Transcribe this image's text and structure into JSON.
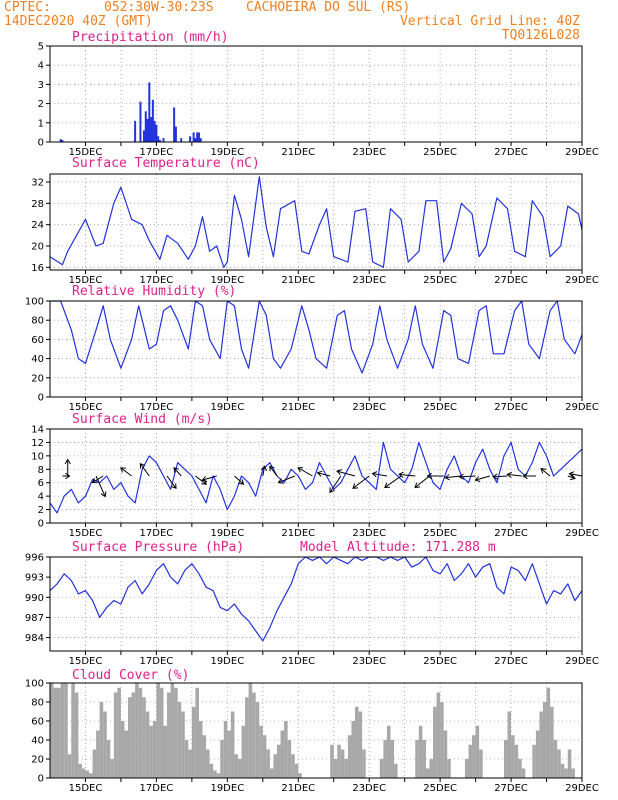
{
  "header": {
    "source": "CPTEC:",
    "coords": "052:30W-30:23S",
    "station": "CACHOEIRA DO SUL (RS)",
    "date": "14DEC2020 40Z (GMT)",
    "grid_note": "Vertical Grid Line: 40Z",
    "run_id": "TQ0126L028"
  },
  "colors": {
    "line": "#2233dd",
    "bar": "#2233dd",
    "cloud": "#a8a8a8",
    "title": "#e0208a",
    "header": "#f08020"
  },
  "x_labels": [
    "15DEC",
    "17DEC",
    "19DEC",
    "21DEC",
    "23DEC",
    "25DEC",
    "27DEC",
    "29DEC"
  ],
  "chart_data": [
    {
      "id": "precip",
      "type": "bar",
      "title": "Precipitation (mm/h)",
      "ylim": [
        0,
        5
      ],
      "yticks": [
        0,
        1,
        2,
        3,
        4,
        5
      ],
      "x": [
        14.3,
        14.35,
        16.4,
        16.55,
        16.65,
        16.7,
        16.75,
        16.8,
        16.85,
        16.9,
        16.95,
        17.0,
        17.05,
        17.1,
        17.2,
        17.5,
        17.55,
        17.7,
        17.95,
        18.05,
        18.1,
        18.15,
        18.2,
        18.25
      ],
      "values": [
        0.15,
        0.1,
        1.1,
        2.1,
        0.6,
        1.6,
        1.2,
        3.1,
        1.3,
        2.2,
        1.1,
        0.9,
        0.3,
        0.1,
        0.2,
        1.8,
        0.8,
        0.2,
        0.3,
        0.5,
        0.2,
        0.5,
        0.5,
        0.2
      ]
    },
    {
      "id": "temp",
      "type": "line",
      "title": "Surface Temperature (nC)",
      "ylim": [
        15.5,
        33.5
      ],
      "yticks": [
        16,
        20,
        24,
        28,
        32
      ],
      "x": [
        14.0,
        14.35,
        14.5,
        15.0,
        15.3,
        15.5,
        15.8,
        16.0,
        16.3,
        16.6,
        16.8,
        17.1,
        17.3,
        17.6,
        17.9,
        18.1,
        18.3,
        18.5,
        18.7,
        18.9,
        19.0,
        19.2,
        19.4,
        19.6,
        19.9,
        20.1,
        20.3,
        20.5,
        20.9,
        21.1,
        21.3,
        21.6,
        21.8,
        22.0,
        22.4,
        22.6,
        22.9,
        23.1,
        23.4,
        23.6,
        23.9,
        24.1,
        24.4,
        24.6,
        24.9,
        25.1,
        25.3,
        25.6,
        25.9,
        26.1,
        26.3,
        26.6,
        26.9,
        27.1,
        27.4,
        27.6,
        27.9,
        28.1,
        28.4,
        28.6,
        28.9,
        29.0
      ],
      "values": [
        18,
        16.5,
        19,
        25,
        20,
        20.5,
        28,
        31,
        25,
        24,
        21,
        17.5,
        22,
        20.5,
        17.5,
        20,
        25.5,
        19,
        20,
        16,
        17,
        29.5,
        25,
        18,
        33,
        23.5,
        18,
        27,
        28.5,
        19,
        18.5,
        24,
        27,
        18,
        17,
        26.5,
        27,
        17,
        16,
        27,
        25,
        17,
        19,
        28.5,
        28.5,
        17,
        19.5,
        28,
        26,
        18,
        20,
        29,
        27,
        19,
        18,
        28.5,
        25.5,
        18,
        20,
        27.5,
        26,
        23
      ]
    },
    {
      "id": "rh",
      "type": "line",
      "title": "Relative Humidity (%)",
      "ylim": [
        0,
        100
      ],
      "yticks": [
        0,
        20,
        40,
        60,
        80,
        100
      ],
      "x": [
        14.0,
        14.3,
        14.6,
        14.8,
        15.0,
        15.3,
        15.5,
        15.7,
        16.0,
        16.3,
        16.5,
        16.8,
        17.0,
        17.2,
        17.4,
        17.6,
        17.9,
        18.1,
        18.3,
        18.5,
        18.8,
        19.0,
        19.2,
        19.4,
        19.6,
        19.9,
        20.1,
        20.3,
        20.5,
        20.8,
        21.1,
        21.3,
        21.5,
        21.8,
        22.1,
        22.3,
        22.5,
        22.8,
        23.1,
        23.3,
        23.5,
        23.8,
        24.1,
        24.3,
        24.5,
        24.8,
        25.1,
        25.3,
        25.5,
        25.8,
        26.1,
        26.3,
        26.5,
        26.8,
        27.1,
        27.3,
        27.5,
        27.8,
        28.1,
        28.3,
        28.5,
        28.8,
        29.0
      ],
      "values": [
        100,
        100,
        70,
        40,
        35,
        70,
        95,
        60,
        30,
        60,
        95,
        50,
        55,
        90,
        95,
        80,
        50,
        100,
        95,
        60,
        40,
        100,
        95,
        50,
        30,
        100,
        85,
        40,
        30,
        50,
        95,
        70,
        40,
        30,
        85,
        90,
        50,
        25,
        55,
        95,
        60,
        30,
        60,
        95,
        55,
        30,
        90,
        85,
        40,
        35,
        90,
        95,
        45,
        45,
        90,
        100,
        55,
        40,
        90,
        100,
        60,
        45,
        65
      ]
    },
    {
      "id": "wind",
      "type": "line",
      "title": "Surface Wind (m/s)",
      "ylim": [
        0,
        14
      ],
      "yticks": [
        0,
        2,
        4,
        6,
        8,
        10,
        12,
        14
      ],
      "x": [
        14.0,
        14.2,
        14.4,
        14.6,
        14.8,
        15.0,
        15.2,
        15.4,
        15.6,
        15.8,
        16.0,
        16.2,
        16.4,
        16.6,
        16.8,
        17.0,
        17.2,
        17.4,
        17.6,
        17.8,
        18.0,
        18.2,
        18.4,
        18.6,
        18.8,
        19.0,
        19.2,
        19.4,
        19.6,
        19.8,
        20.0,
        20.2,
        20.4,
        20.6,
        20.8,
        21.0,
        21.2,
        21.4,
        21.6,
        21.8,
        22.0,
        22.2,
        22.4,
        22.6,
        22.8,
        23.0,
        23.2,
        23.4,
        23.6,
        23.8,
        24.0,
        24.2,
        24.4,
        24.6,
        24.8,
        25.0,
        25.2,
        25.4,
        25.6,
        25.8,
        26.0,
        26.2,
        26.4,
        26.6,
        26.8,
        27.0,
        27.2,
        27.4,
        27.6,
        27.8,
        28.0,
        28.2,
        28.4,
        28.6,
        28.8,
        29.0
      ],
      "values": [
        3,
        1.5,
        4,
        5,
        3,
        4,
        6.5,
        6,
        7,
        5,
        6,
        4,
        3,
        8,
        10,
        9,
        7,
        5,
        9,
        8,
        7,
        5,
        3,
        7,
        5,
        2,
        4,
        7,
        6,
        4,
        8,
        9,
        7,
        6,
        8,
        7,
        5,
        6,
        9,
        7,
        5,
        6,
        8,
        10,
        7,
        6,
        5,
        12,
        8,
        7,
        6,
        8,
        12,
        9,
        6,
        5,
        8,
        10,
        7,
        6,
        9,
        11,
        8,
        6,
        10,
        12,
        8,
        7,
        9,
        12,
        10,
        7,
        8,
        9,
        10,
        11
      ],
      "vectors": [
        {
          "x": 14.35,
          "dx": 0.4,
          "dy": 0.0
        },
        {
          "x": 14.5,
          "dx": 0.0,
          "dy": 2.0
        },
        {
          "x": 15.3,
          "dx": 0.5,
          "dy": -2.5
        },
        {
          "x": 15.5,
          "dx": -0.6,
          "dy": -0.8
        },
        {
          "x": 16.3,
          "dx": -0.6,
          "dy": 1.0
        },
        {
          "x": 16.8,
          "dx": -0.5,
          "dy": 1.5
        },
        {
          "x": 17.3,
          "dx": 0.5,
          "dy": -1.5
        },
        {
          "x": 17.7,
          "dx": -0.4,
          "dy": 1.0
        },
        {
          "x": 18.1,
          "dx": 0.6,
          "dy": -1.0
        },
        {
          "x": 18.7,
          "dx": -0.8,
          "dy": -0.5
        },
        {
          "x": 19.2,
          "dx": 0.5,
          "dy": -1.0
        },
        {
          "x": 20.0,
          "dx": 0.1,
          "dy": 1.2
        },
        {
          "x": 20.4,
          "dx": -0.4,
          "dy": 1.2
        },
        {
          "x": 20.9,
          "dx": -0.9,
          "dy": -0.8
        },
        {
          "x": 21.4,
          "dx": -0.8,
          "dy": 1.0
        },
        {
          "x": 21.9,
          "dx": -0.7,
          "dy": 0.4
        },
        {
          "x": 22.2,
          "dx": -0.6,
          "dy": -2.0
        },
        {
          "x": 22.6,
          "dx": -1.0,
          "dy": 0.6
        },
        {
          "x": 23.0,
          "dx": -0.9,
          "dy": -1.5
        },
        {
          "x": 23.5,
          "dx": -0.8,
          "dy": 0.3
        },
        {
          "x": 23.9,
          "dx": -0.9,
          "dy": -1.4
        },
        {
          "x": 24.3,
          "dx": -0.9,
          "dy": 0.2
        },
        {
          "x": 24.7,
          "dx": -0.8,
          "dy": -1.4
        },
        {
          "x": 25.1,
          "dx": -0.9,
          "dy": 0.0
        },
        {
          "x": 25.6,
          "dx": -0.9,
          "dy": -0.2
        },
        {
          "x": 26.0,
          "dx": -0.9,
          "dy": -0.1
        },
        {
          "x": 26.4,
          "dx": -0.8,
          "dy": -0.5
        },
        {
          "x": 26.9,
          "dx": -0.8,
          "dy": -0.1
        },
        {
          "x": 27.3,
          "dx": -0.8,
          "dy": 0.2
        },
        {
          "x": 27.7,
          "dx": -0.7,
          "dy": 0.0
        },
        {
          "x": 28.1,
          "dx": -0.5,
          "dy": 0.9
        },
        {
          "x": 28.6,
          "dx": 0.4,
          "dy": -0.3
        },
        {
          "x": 29.0,
          "dx": -0.7,
          "dy": 0.3
        }
      ]
    },
    {
      "id": "press",
      "type": "line",
      "title": "Surface Pressure (hPa)",
      "subtitle": "Model Altitude: 171.288 m",
      "ylim": [
        982,
        996
      ],
      "yticks": [
        984,
        987,
        990,
        993,
        996
      ],
      "x": [
        14.0,
        14.2,
        14.4,
        14.6,
        14.8,
        15.0,
        15.2,
        15.4,
        15.6,
        15.8,
        16.0,
        16.2,
        16.4,
        16.6,
        16.8,
        17.0,
        17.2,
        17.4,
        17.6,
        17.8,
        18.0,
        18.2,
        18.4,
        18.6,
        18.8,
        19.0,
        19.2,
        19.4,
        19.6,
        19.8,
        20.0,
        20.2,
        20.4,
        20.6,
        20.8,
        21.0,
        21.2,
        21.4,
        21.6,
        21.8,
        22.0,
        22.2,
        22.4,
        22.6,
        22.8,
        23.0,
        23.2,
        23.4,
        23.6,
        23.8,
        24.0,
        24.2,
        24.4,
        24.6,
        24.8,
        25.0,
        25.2,
        25.4,
        25.6,
        25.8,
        26.0,
        26.2,
        26.4,
        26.6,
        26.8,
        27.0,
        27.2,
        27.4,
        27.6,
        27.8,
        28.0,
        28.2,
        28.4,
        28.6,
        28.8,
        29.0
      ],
      "values": [
        991,
        992,
        993.5,
        992.5,
        990.5,
        991,
        989.5,
        987,
        988.5,
        989.5,
        989,
        991.5,
        992.5,
        990.5,
        992,
        994,
        995,
        993,
        992,
        994,
        995,
        993.5,
        991.5,
        991,
        988.5,
        988,
        989,
        987.5,
        986.5,
        985,
        983.5,
        985.5,
        988,
        990,
        992,
        995,
        996,
        995.5,
        996,
        995,
        996,
        995.5,
        995,
        996,
        995.5,
        996,
        996,
        995.5,
        996,
        995.5,
        996,
        994.5,
        995,
        996,
        994,
        993.5,
        995,
        992.5,
        993.5,
        995,
        993,
        994.5,
        995,
        991.5,
        990.5,
        994.5,
        994,
        992.5,
        995,
        992,
        989,
        991,
        990.5,
        992,
        989.5,
        991
      ]
    },
    {
      "id": "cloud",
      "type": "area",
      "title": "Cloud Cover (%)",
      "ylim": [
        0,
        100
      ],
      "yticks": [
        0,
        20,
        40,
        60,
        80,
        100
      ],
      "x": [
        14.0,
        14.1,
        14.3,
        14.4,
        14.5,
        14.6,
        14.7,
        14.8,
        14.9,
        15.0,
        15.1,
        15.2,
        15.3,
        15.4,
        15.5,
        15.6,
        15.7,
        15.8,
        15.9,
        16.0,
        16.1,
        16.2,
        16.3,
        16.4,
        16.5,
        16.6,
        16.7,
        16.8,
        16.9,
        17.0,
        17.1,
        17.2,
        17.3,
        17.4,
        17.5,
        17.6,
        17.7,
        17.8,
        17.9,
        18.0,
        18.1,
        18.2,
        18.3,
        18.4,
        18.5,
        18.6,
        18.7,
        18.8,
        18.9,
        19.0,
        19.1,
        19.2,
        19.3,
        19.4,
        19.5,
        19.6,
        19.7,
        19.8,
        19.9,
        20.0,
        20.1,
        20.2,
        20.3,
        20.4,
        20.5,
        20.6,
        20.7,
        20.8,
        20.9,
        21.0,
        21.1,
        21.2,
        21.3,
        21.4,
        21.5,
        21.6,
        21.7,
        21.8,
        21.9,
        22.0,
        22.1,
        22.2,
        22.3,
        22.4,
        22.5,
        22.6,
        22.7,
        22.8,
        22.9,
        23.0,
        23.1,
        23.2,
        23.3,
        23.4,
        23.5,
        23.6,
        23.7,
        23.8,
        23.9,
        24.0,
        24.1,
        24.2,
        24.3,
        24.4,
        24.5,
        24.6,
        24.7,
        24.8,
        24.9,
        25.0,
        25.1,
        25.2,
        25.3,
        25.4,
        25.5,
        25.6,
        25.7,
        25.8,
        25.9,
        26.0,
        26.1,
        26.2,
        26.3,
        26.4,
        26.5,
        26.6,
        26.7,
        26.8,
        26.9,
        27.0,
        27.1,
        27.2,
        27.3,
        27.4,
        27.5,
        27.6,
        27.7,
        27.8,
        27.9,
        28.0,
        28.1,
        28.2,
        28.3,
        28.4,
        28.5,
        28.6,
        28.7,
        28.8,
        28.9,
        29.0
      ],
      "values": [
        100,
        95,
        100,
        100,
        25,
        100,
        90,
        15,
        10,
        8,
        5,
        30,
        50,
        80,
        70,
        40,
        20,
        90,
        95,
        60,
        50,
        85,
        90,
        100,
        95,
        85,
        70,
        55,
        60,
        100,
        95,
        55,
        90,
        100,
        95,
        80,
        70,
        40,
        30,
        75,
        95,
        60,
        45,
        30,
        15,
        8,
        5,
        40,
        60,
        50,
        70,
        25,
        20,
        55,
        85,
        100,
        90,
        80,
        55,
        45,
        30,
        10,
        25,
        35,
        50,
        60,
        40,
        25,
        15,
        5,
        0,
        0,
        0,
        0,
        0,
        0,
        0,
        0,
        35,
        20,
        35,
        30,
        20,
        45,
        60,
        75,
        70,
        30,
        0,
        0,
        0,
        0,
        20,
        40,
        55,
        40,
        15,
        0,
        0,
        0,
        0,
        0,
        40,
        55,
        40,
        10,
        20,
        75,
        90,
        80,
        50,
        20,
        0,
        0,
        0,
        0,
        20,
        35,
        45,
        55,
        30,
        0,
        0,
        0,
        0,
        0,
        0,
        40,
        70,
        45,
        35,
        20,
        10,
        0,
        0,
        35,
        50,
        70,
        80,
        95,
        75,
        40,
        30,
        15,
        10,
        30,
        10,
        0,
        0,
        0
      ]
    }
  ]
}
